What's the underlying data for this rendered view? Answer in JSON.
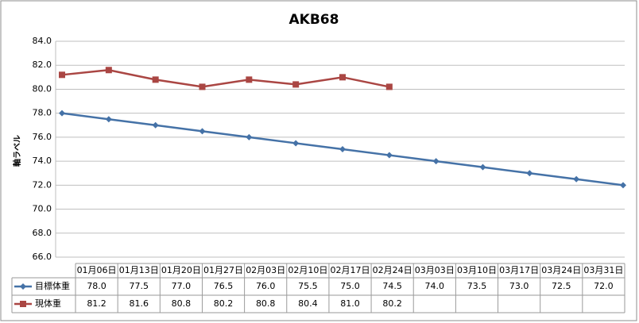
{
  "chart_data": {
    "type": "line",
    "title": "AKB68",
    "y_label": "軸ラベル",
    "categories": [
      "01月06日",
      "01月13日",
      "01月20日",
      "01月27日",
      "02月03日",
      "02月10日",
      "02月17日",
      "02月24日",
      "03月03日",
      "03月10日",
      "03月17日",
      "03月24日",
      "03月31日"
    ],
    "series": [
      {
        "name": "目標体重",
        "color": "#4572a7",
        "marker": "diamond",
        "values": [
          78.0,
          77.5,
          77.0,
          76.5,
          76.0,
          75.5,
          75.0,
          74.5,
          74.0,
          73.5,
          73.0,
          72.5,
          72.0
        ],
        "value_labels": [
          "78.0",
          "77.5",
          "77.0",
          "76.5",
          "76.0",
          "75.5",
          "75.0",
          "74.5",
          "74.0",
          "73.5",
          "73.0",
          "72.5",
          "72.0"
        ]
      },
      {
        "name": "現体重",
        "color": "#aa4643",
        "marker": "square",
        "values": [
          81.2,
          81.6,
          80.8,
          80.2,
          80.8,
          80.4,
          81.0,
          80.2,
          null,
          null,
          null,
          null,
          null
        ],
        "value_labels": [
          "81.2",
          "81.6",
          "80.8",
          "80.2",
          "80.8",
          "80.4",
          "81.0",
          "80.2",
          null,
          null,
          null,
          null,
          null
        ]
      }
    ],
    "ylim": [
      66,
      84
    ],
    "yticks": [
      {
        "value": 66,
        "label": "66.0"
      },
      {
        "value": 68,
        "label": "68.0"
      },
      {
        "value": 70,
        "label": "70.0"
      },
      {
        "value": 72,
        "label": "72.0"
      },
      {
        "value": 74,
        "label": "74.0"
      },
      {
        "value": 76,
        "label": "76.0"
      },
      {
        "value": 78,
        "label": "78.0"
      },
      {
        "value": 80,
        "label": "80.0"
      },
      {
        "value": 82,
        "label": "82.0"
      },
      {
        "value": 84,
        "label": "84.0"
      }
    ],
    "grid": true
  }
}
